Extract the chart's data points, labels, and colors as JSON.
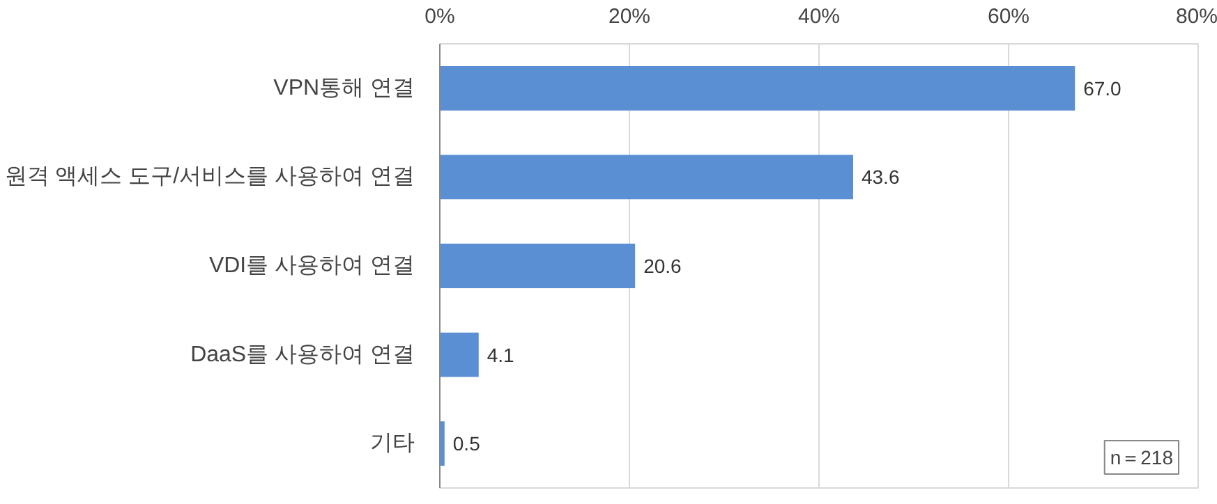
{
  "chart_data": {
    "type": "bar",
    "orientation": "horizontal",
    "categories": [
      "VPN통해 연결",
      "원격 액세스 도구/서비스를 사용하여 연결",
      "VDI를 사용하여 연결",
      "DaaS를 사용하여 연결",
      "기타"
    ],
    "values": [
      67.0,
      43.6,
      20.6,
      4.1,
      0.5
    ],
    "color": "#5b8fd4",
    "xlim": [
      0,
      80
    ],
    "xticks": [
      {
        "value": 0,
        "label": "0%"
      },
      {
        "value": 20,
        "label": "20%"
      },
      {
        "value": 40,
        "label": "40%"
      },
      {
        "value": 60,
        "label": "60%"
      },
      {
        "value": 80,
        "label": "80%"
      }
    ],
    "grid": "x",
    "value_labels": [
      "67.0",
      "43.6",
      "20.6",
      "4.1",
      "0.5"
    ],
    "annotations": [
      "n＝218"
    ]
  }
}
